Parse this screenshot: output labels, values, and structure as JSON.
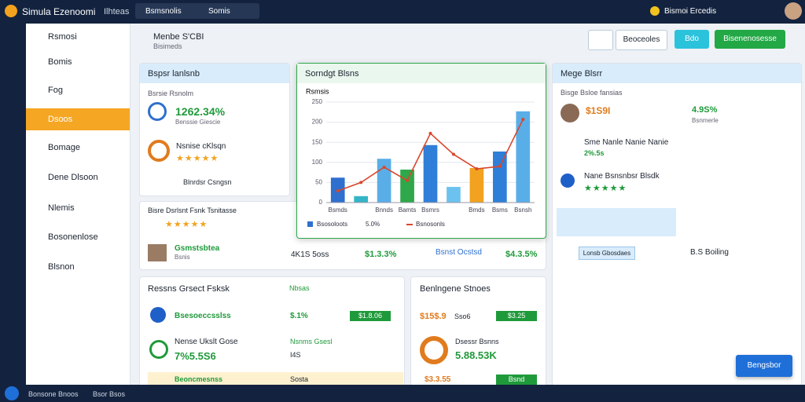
{
  "topbar": {
    "app": "Simula Ezenoomi",
    "menu": "Ilhteas",
    "tab": "Bsmsnolis",
    "search": "Somis",
    "user": "Bismoi Ercedis"
  },
  "sidebar": [
    "Rsmosi",
    "Bomis",
    "Fog",
    "Dsoos",
    "Bomage",
    "Dene Dlsoon",
    "Nlemis",
    "Bosonenlose",
    "Blsnon"
  ],
  "header": {
    "title": "Menbe S'CBI",
    "subtitle": "Bisimeds",
    "buttons": [
      "Beoceoles",
      "Bdo",
      "Bisenenosesse"
    ]
  },
  "card1": {
    "title": "Bspsr lanlsnb",
    "label": "Bsrsie Rsnolm",
    "metric": "1262.34%",
    "sub": "Benssie Giescie",
    "name": "Nsnise cKlsqn",
    "footer": "Blnrdsr Csngsn"
  },
  "card2": {
    "title": "Bisre Dsrlsnt Fsnk Tsnitasse",
    "name": "Gsmstsbtea",
    "sub": "Bsnis",
    "mid": "4K1S 5oss",
    "value": "$1.3.3%",
    "right_title": "Bsnst Ocstsd",
    "right_value": "$4.3.5%"
  },
  "chart_data": {
    "type": "bar",
    "title": "Sorndgt Blsns",
    "ylabel": "Rsmsis",
    "categories": [
      "Bsmds",
      null,
      "Bnnds",
      "Bamts",
      "Bsmrs",
      null,
      "Bmds",
      "Bsms",
      "Bsnsh"
    ],
    "series": [
      {
        "name": "Bsosoloots",
        "type": "bar",
        "colors": [
          "#2f6fce",
          "#33b5c8",
          "#5aaee8",
          "#2ea84a",
          "#2f7fd8",
          "#6cc2ef",
          "#f2a21e",
          "#2f7fd8",
          "#5aaee8"
        ],
        "values": [
          62,
          16,
          109,
          82,
          143,
          39,
          86,
          127,
          227
        ]
      },
      {
        "name": "Bsnosonls",
        "type": "line",
        "color": "#d9472b",
        "values": [
          29,
          50,
          88,
          55,
          172,
          120,
          84,
          90,
          207
        ]
      }
    ],
    "ylim": [
      0,
      250
    ],
    "yticks": [
      0,
      50,
      100,
      150,
      200,
      250
    ],
    "legend_extra": "5.0%"
  },
  "right": {
    "title": "Mege Blsrr",
    "sub": "Bisge Bsloe fansias",
    "price": "$1S9I",
    "pct": "4.9S%",
    "pct_sub": "Bsnmerle",
    "item1": "Sme Nanle Nanie Nanie",
    "item1_val": "2%.5s",
    "item2": "Nane Bsnsnbsr Blsdk",
    "tag": "Lonsb Gbosdaes",
    "status": "B.S Boiling"
  },
  "card3": {
    "title": "Ressns Grsect Fsksk",
    "col": "Nbsas",
    "row1": "Bsesoeccsslss",
    "row1_val": "$.1%",
    "row1_badge": "$1.8.06",
    "row2": "Nense Ukslt Gose",
    "row2_val": "7%5.5S6",
    "row2_right": "Nsnms Gsesl",
    "row2_sub": "I4S",
    "row3": "Beoncmesnss",
    "row3_right": "Sosta"
  },
  "card4": {
    "title": "Benlngene Stnoes",
    "val": "$15$.9",
    "val2": "Sso6",
    "badge": "$3.25",
    "row2": "Dsessr Bsnns",
    "row2_val": "5.88.53K",
    "row3": "$3.3.55",
    "row3_badge": "Bsnd"
  },
  "fab": "Bengsbor",
  "footer": {
    "left": "Bonsone Bnoos",
    "right": "Bsor Bsos"
  }
}
